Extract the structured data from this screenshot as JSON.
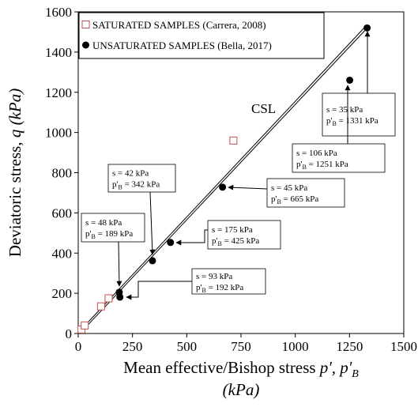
{
  "chart_data": {
    "type": "scatter",
    "xlabel": [
      "Mean effective/Bishop stress ",
      "p', p'",
      "B",
      "(kPa)"
    ],
    "ylabel": [
      "Deviatoric stress, ",
      "q (kPa)"
    ],
    "xlim": [
      0,
      1500
    ],
    "xticks": [
      0,
      250,
      500,
      750,
      1000,
      1250,
      1500
    ],
    "ylim": [
      0,
      1600
    ],
    "yticks": [
      0,
      200,
      400,
      600,
      800,
      1000,
      1200,
      1400,
      1600
    ],
    "legend": "upper left",
    "series": [
      {
        "name": "SATURATED SAMPLES (Carrera, 2008)",
        "color": "#c0504d",
        "marker": "open-square",
        "x": [
          15,
          30,
          105,
          140,
          715
        ],
        "values": [
          20,
          40,
          135,
          175,
          960
        ]
      },
      {
        "name": "UNSATURATED SAMPLES (Bella, 2017)",
        "color": "#000000",
        "marker": "filled-circle",
        "x": [
          1331,
          1251,
          342,
          665,
          189,
          425,
          192
        ],
        "values": [
          1520,
          1260,
          362,
          728,
          205,
          453,
          181
        ]
      }
    ],
    "line_label": "CSL",
    "annotations": [
      {
        "line1": "s = 35 kPa",
        "line2": [
          "p'",
          "B",
          " = 1331 kPa"
        ]
      },
      {
        "line1": "s = 106 kPa",
        "line2": [
          "p'",
          "B",
          " = 1251 kPa"
        ]
      },
      {
        "line1": "s = 42 kPa",
        "line2": [
          "p'",
          "B",
          " = 342 kPa"
        ]
      },
      {
        "line1": "s = 45 kPa",
        "line2": [
          "p'",
          "B",
          " = 665 kPa"
        ]
      },
      {
        "line1": "s = 48 kPa",
        "line2": [
          "p'",
          "B",
          " = 189 kPa"
        ]
      },
      {
        "line1": "s = 175 kPa",
        "line2": [
          "p'",
          "B",
          " = 425 kPa"
        ]
      },
      {
        "line1": "s = 93 kPa",
        "line2": [
          "p'",
          "B",
          " = 192 kPa"
        ]
      }
    ]
  }
}
